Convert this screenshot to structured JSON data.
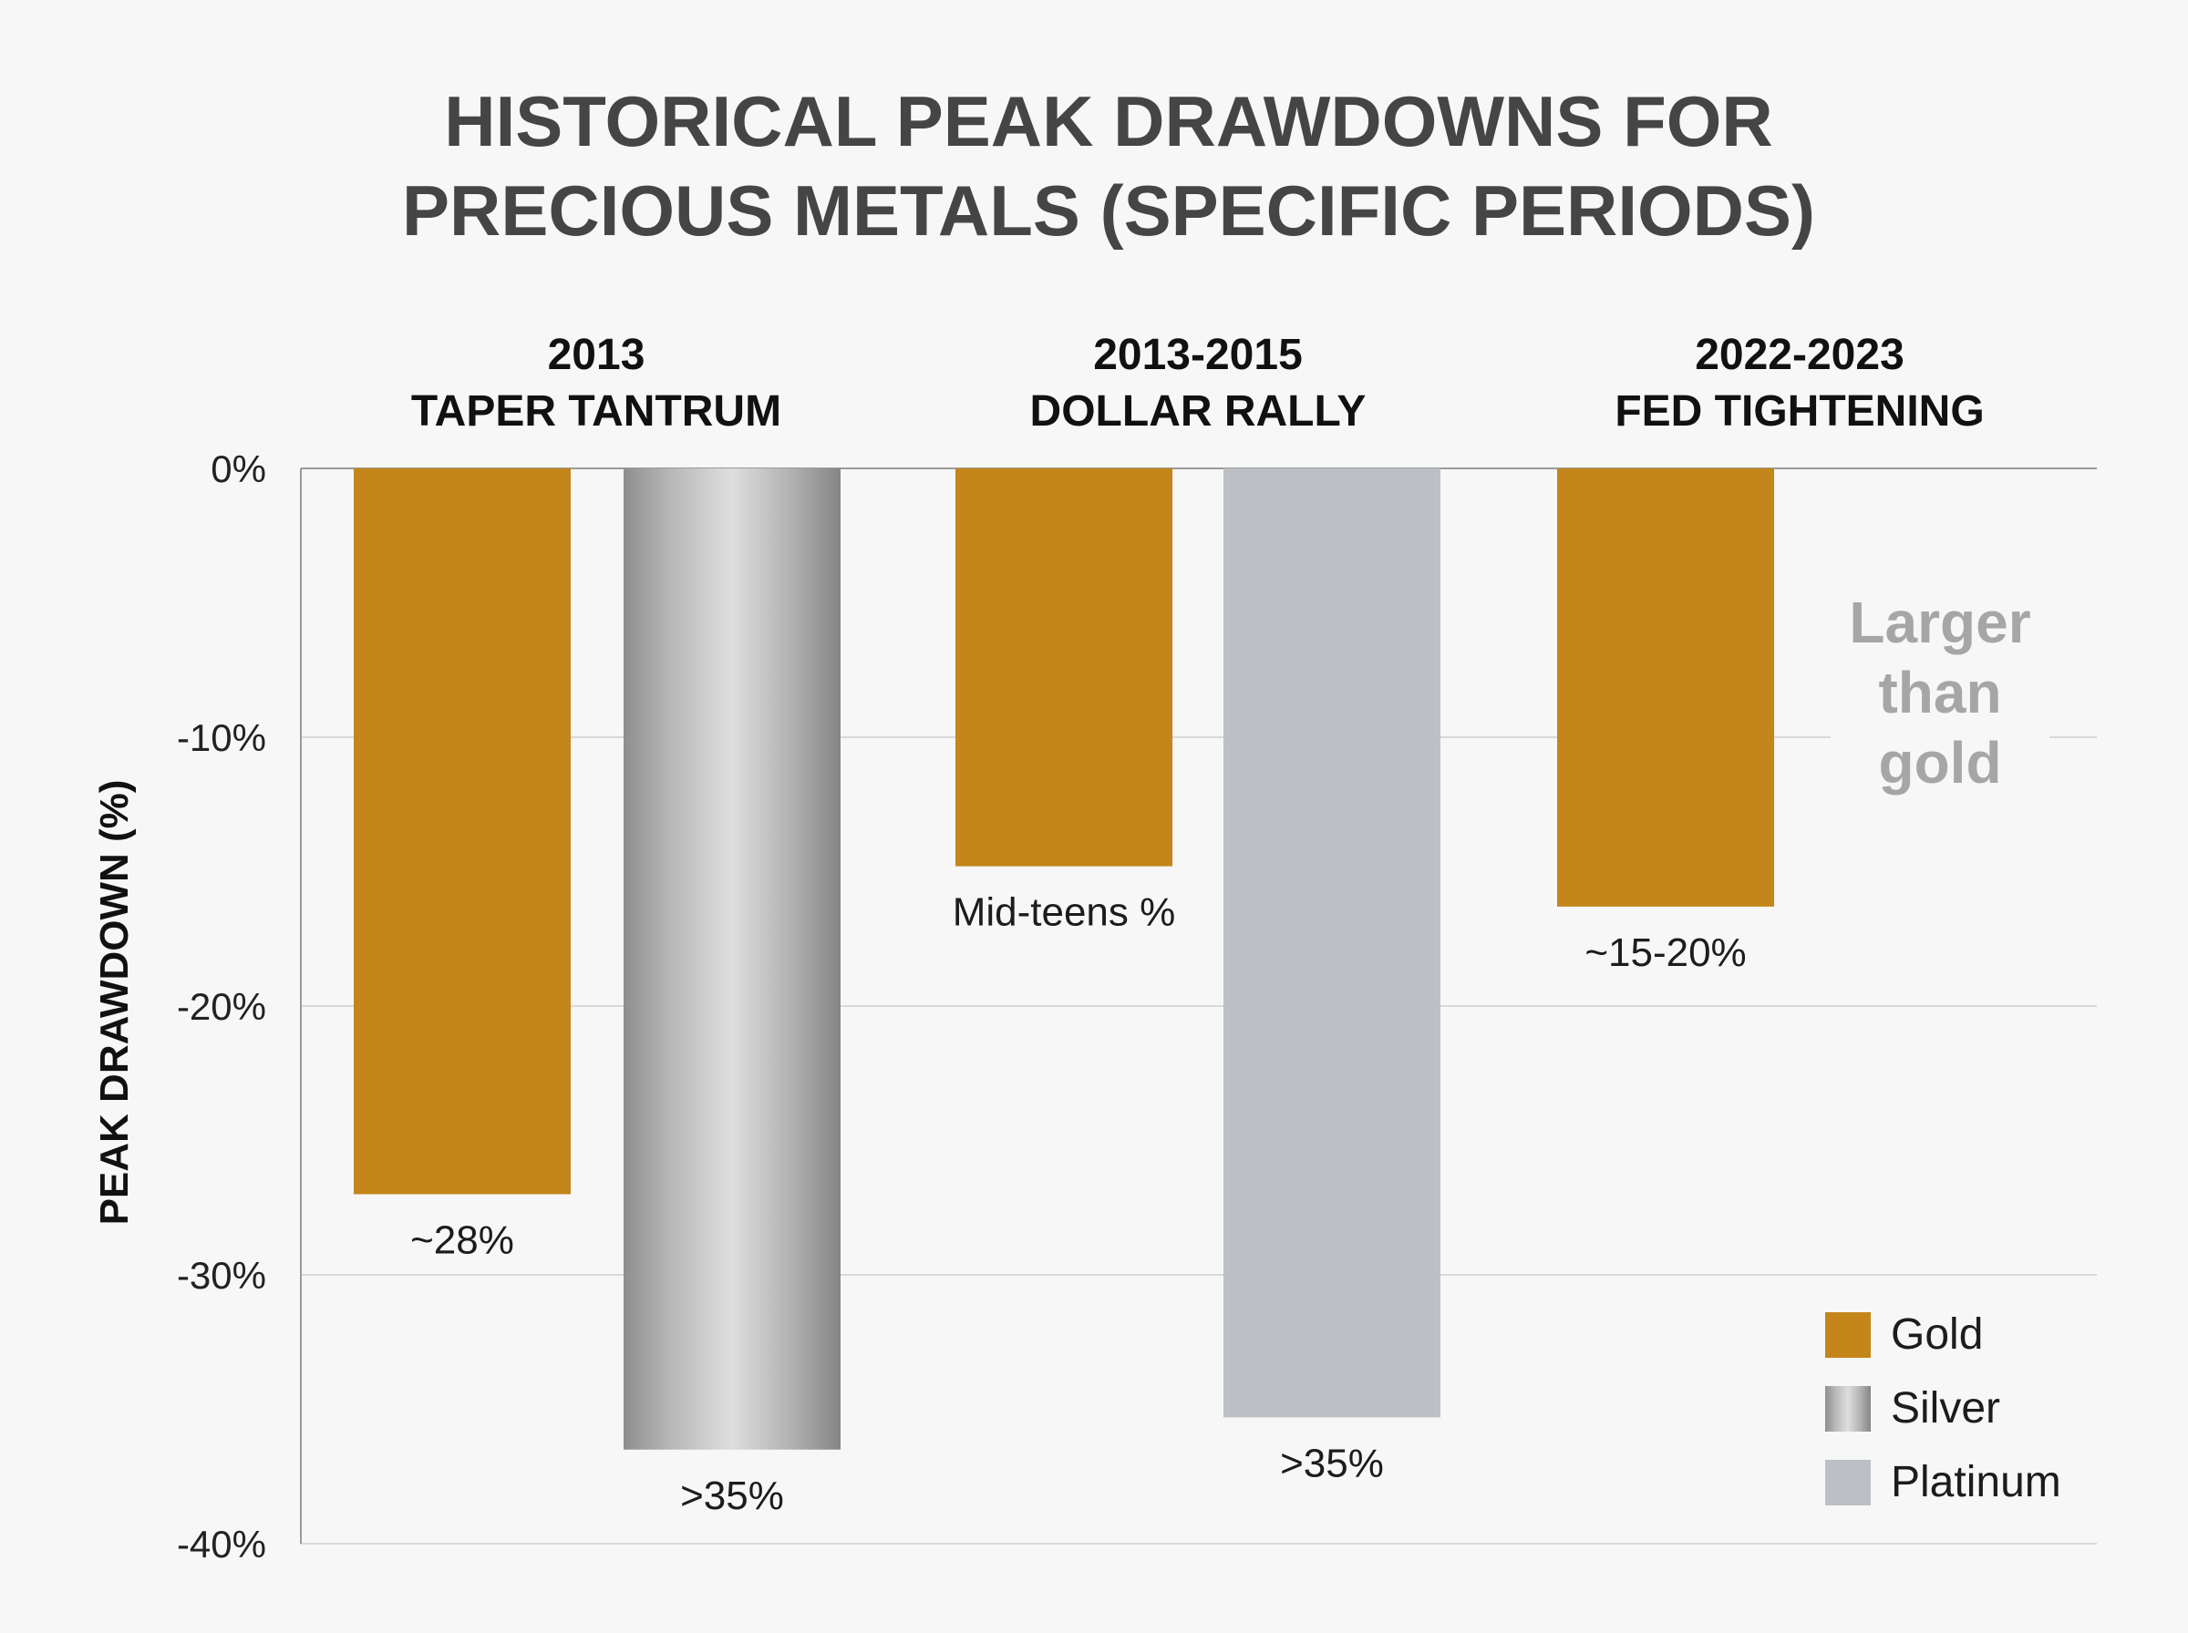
{
  "chart_data": {
    "type": "bar",
    "title_lines": [
      "HISTORICAL PEAK DRAWDOWNS FOR",
      "PRECIOUS METALS (SPECIFIC PERIODS)"
    ],
    "ylabel": "PEAK DRAWDOWN (%)",
    "ylim": [
      -40,
      0
    ],
    "yticks": [
      {
        "value": 0,
        "label": "0%"
      },
      {
        "value": -10,
        "label": "-10%"
      },
      {
        "value": -20,
        "label": "-20%"
      },
      {
        "value": -30,
        "label": "-30%"
      },
      {
        "value": -40,
        "label": "-40%"
      }
    ],
    "grid": true,
    "groups": [
      {
        "label_lines": [
          "2013",
          "TAPER TANTRUM"
        ],
        "bars": [
          {
            "series": "Gold",
            "value": -27,
            "label": "~28%"
          },
          {
            "series": "Silver",
            "value": -36.5,
            "label": ">35%"
          }
        ]
      },
      {
        "label_lines": [
          "2013-2015",
          "DOLLAR RALLY"
        ],
        "bars": [
          {
            "series": "Gold",
            "value": -14.8,
            "label": "Mid-teens %"
          },
          {
            "series": "Platinum",
            "value": -35.3,
            "label": ">35%"
          }
        ]
      },
      {
        "label_lines": [
          "2022-2023",
          "FED TIGHTENING"
        ],
        "bars": [
          {
            "series": "Gold",
            "value": -16.3,
            "label": "~15-20%"
          }
        ],
        "annotation_lines": [
          "Larger",
          "than",
          "gold"
        ]
      }
    ],
    "series": [
      {
        "name": "Gold",
        "color": "#c4851b"
      },
      {
        "name": "Silver",
        "color": "#a9a9a9",
        "style": "metallic-gradient"
      },
      {
        "name": "Platinum",
        "color": "#bcc0c6"
      }
    ],
    "legend_position": "bottom-right"
  }
}
